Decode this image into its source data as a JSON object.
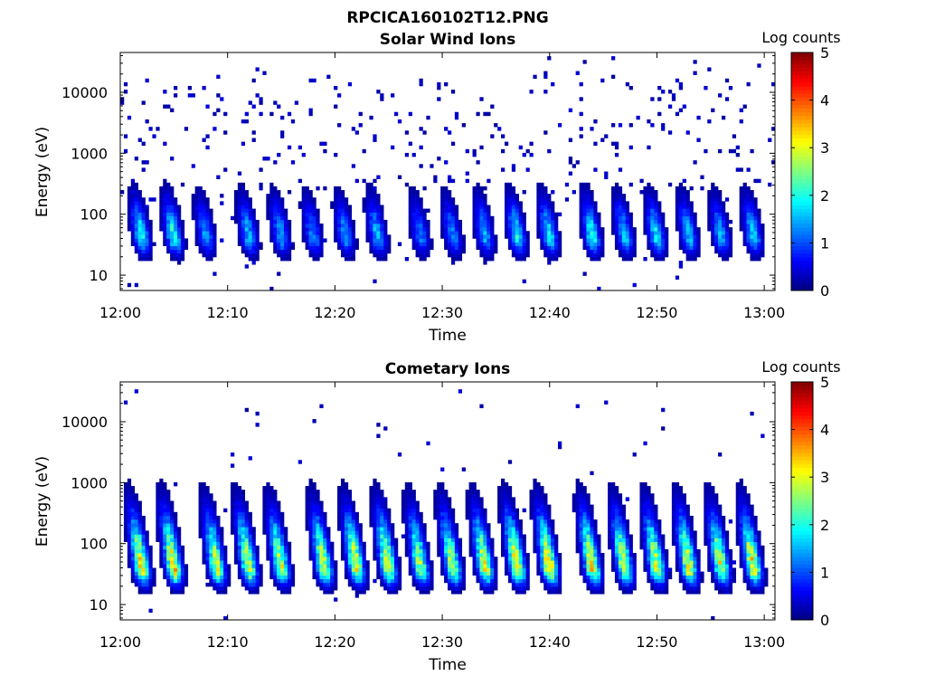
{
  "figure": {
    "title": "RPCICA160102T12.PNG"
  },
  "chart_data": [
    {
      "type": "heatmap",
      "title": "Solar Wind Ions",
      "xlabel": "Time",
      "ylabel": "Energy (eV)",
      "xticks": [
        "12:00",
        "12:10",
        "12:20",
        "12:30",
        "12:40",
        "12:50",
        "13:00"
      ],
      "xlim": [
        "12:00",
        "13:01"
      ],
      "yscale": "log",
      "yticks": [
        10,
        100,
        1000,
        10000
      ],
      "ylim": [
        5.6,
        45000
      ],
      "colorbar": {
        "label": "Log counts",
        "range": [
          0,
          5
        ],
        "ticks": [
          0,
          1,
          2,
          3,
          4,
          5
        ],
        "colormap": "jet"
      },
      "bursts": [
        {
          "t": "12:02",
          "log_counts": 2.0
        },
        {
          "t": "12:05",
          "log_counts": 2.1
        },
        {
          "t": "12:08",
          "log_counts": 1.4
        },
        {
          "t": "12:12",
          "log_counts": 1.6
        },
        {
          "t": "12:15",
          "log_counts": 1.5
        },
        {
          "t": "12:18",
          "log_counts": 1.3
        },
        {
          "t": "12:21",
          "log_counts": 1.4
        },
        {
          "t": "12:24",
          "log_counts": 1.6
        },
        {
          "t": "12:28",
          "log_counts": 1.2
        },
        {
          "t": "12:31",
          "log_counts": 1.3
        },
        {
          "t": "12:34",
          "log_counts": 1.5
        },
        {
          "t": "12:37",
          "log_counts": 1.9
        },
        {
          "t": "12:40",
          "log_counts": 1.8
        },
        {
          "t": "12:44",
          "log_counts": 2.0
        },
        {
          "t": "12:47",
          "log_counts": 1.6
        },
        {
          "t": "12:50",
          "log_counts": 1.8
        },
        {
          "t": "12:53",
          "log_counts": 1.6
        },
        {
          "t": "12:56",
          "log_counts": 1.5
        },
        {
          "t": "12:59",
          "log_counts": 1.7
        }
      ],
      "burst_peak_energy_eV": 42
    },
    {
      "type": "heatmap",
      "title": "Cometary Ions",
      "xlabel": "Time",
      "ylabel": "Energy (eV)",
      "xticks": [
        "12:00",
        "12:10",
        "12:20",
        "12:30",
        "12:40",
        "12:50",
        "13:00"
      ],
      "xlim": [
        "12:00",
        "13:01"
      ],
      "yscale": "log",
      "yticks": [
        10,
        100,
        1000,
        10000
      ],
      "ylim": [
        5.6,
        45000
      ],
      "colorbar": {
        "label": "Log counts",
        "range": [
          0,
          5
        ],
        "ticks": [
          0,
          1,
          2,
          3,
          4,
          5
        ],
        "colormap": "jet"
      },
      "bursts": [
        {
          "t": "12:02",
          "log_counts": 3.1
        },
        {
          "t": "12:05",
          "log_counts": 3.3
        },
        {
          "t": "12:09",
          "log_counts": 2.9
        },
        {
          "t": "12:12",
          "log_counts": 3.0
        },
        {
          "t": "12:15",
          "log_counts": 2.9
        },
        {
          "t": "12:19",
          "log_counts": 3.0
        },
        {
          "t": "12:22",
          "log_counts": 3.1
        },
        {
          "t": "12:25",
          "log_counts": 3.1
        },
        {
          "t": "12:28",
          "log_counts": 2.7
        },
        {
          "t": "12:31",
          "log_counts": 2.8
        },
        {
          "t": "12:34",
          "log_counts": 3.0
        },
        {
          "t": "12:37",
          "log_counts": 3.3
        },
        {
          "t": "12:40",
          "log_counts": 3.4
        },
        {
          "t": "12:44",
          "log_counts": 3.2
        },
        {
          "t": "12:47",
          "log_counts": 3.0
        },
        {
          "t": "12:50",
          "log_counts": 3.0
        },
        {
          "t": "12:53",
          "log_counts": 3.1
        },
        {
          "t": "12:56",
          "log_counts": 3.0
        },
        {
          "t": "12:59",
          "log_counts": 3.2
        }
      ],
      "burst_peak_energy_eV": 40
    }
  ]
}
